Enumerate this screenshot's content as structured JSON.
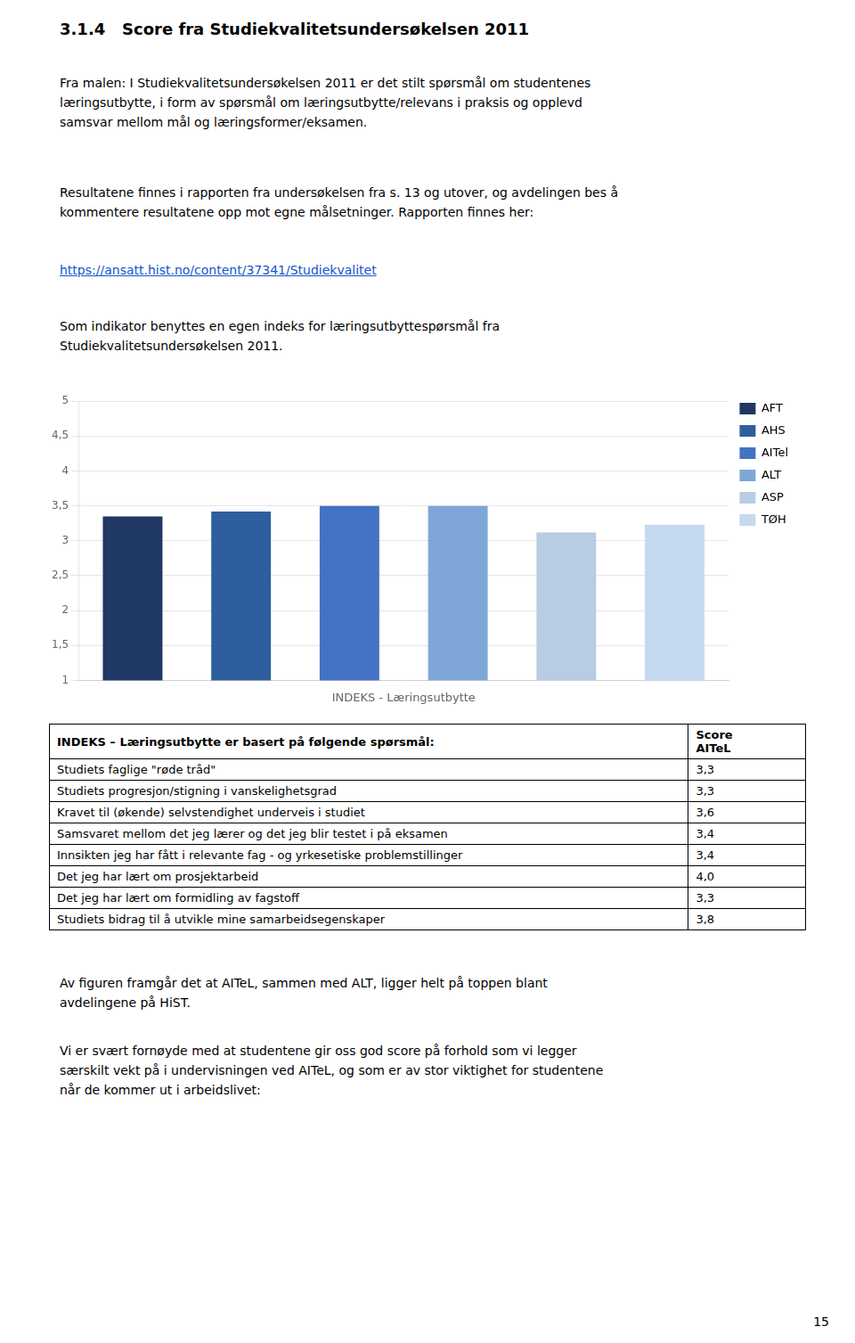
{
  "page": {
    "heading": "3.1.4   Score fra Studiekvalitetsundersøkelsen 2011",
    "paragraphs_before": [
      [
        "Fra malen: I Studiekvalitetsundersøkelsen 2011 er det stilt spørsmål om studentenes",
        "læringsutbytte, i form av spørsmål om læringsutbytte/relevans i praksis og opplevd",
        "samsvar mellom mål og læringsformer/eksamen."
      ],
      [
        "Resultatene finnes i rapporten fra undersøkelsen fra s. 13 og utover, og avdelingen bes å",
        "kommentere resultatene opp mot egne målsetninger. Rapporten finnes her:"
      ]
    ],
    "link": "https://ansatt.hist.no/content/37341/Studiekvalitet",
    "paragraph_before_chart": [
      "Som indikator benyttes en egen indeks for læringsutbyttespørsmål fra",
      "Studiekvalitetsundersøkelsen 2011."
    ],
    "table": {
      "header": [
        "INDEKS – Læringsutbytte er basert på følgende spørsmål:",
        "Score\nAITeL"
      ],
      "rows": [
        [
          "Studiets faglige \"røde tråd\"",
          "3,3"
        ],
        [
          "Studiets progresjon/stigning i vanskelighetsgrad",
          "3,3"
        ],
        [
          "Kravet til (økende) selvstendighet underveis i studiet",
          "3,6"
        ],
        [
          "Samsvaret mellom det jeg lærer og det jeg blir testet i på eksamen",
          "3,4"
        ],
        [
          "Innsikten jeg har fått i relevante fag - og yrkesetiske problemstillinger",
          "3,4"
        ],
        [
          "Det jeg har lært om prosjektarbeid",
          "4,0"
        ],
        [
          "Det jeg har lært om formidling av fagstoff",
          "3,3"
        ],
        [
          "Studiets bidrag til å utvikle mine samarbeidsegenskaper",
          "3,8"
        ]
      ]
    },
    "paragraphs_after": [
      [
        "Av figuren framgår det at AITeL, sammen med ALT, ligger helt på toppen blant",
        "avdelingene på HiST."
      ],
      [
        "Vi er svært fornøyde med at studentene gir oss god score på forhold som vi legger",
        "særskilt vekt på i undervisningen ved AITeL, og som er av stor viktighet for studentene",
        "når de kommer ut i arbeidslivet:"
      ]
    ],
    "page_number": "15"
  },
  "chart_data": {
    "type": "bar",
    "categories": [
      "AFT",
      "AHS",
      "AITel",
      "ALT",
      "ASP",
      "TØH"
    ],
    "values": [
      3.35,
      3.42,
      3.5,
      3.5,
      3.12,
      3.23
    ],
    "colors": [
      "#1F3864",
      "#2E5E9E",
      "#4472C4",
      "#7EA7D8",
      "#B8CCE4",
      "#C5D9F1"
    ],
    "xlabel": "INDEKS - Læringsutbytte",
    "ylim": [
      1,
      5
    ],
    "yticks": [
      1,
      {
        "value": 1.5,
        "label": "1,5"
      },
      2,
      {
        "value": 2.5,
        "label": "2,5"
      },
      3,
      {
        "value": 3.5,
        "label": "3,5"
      },
      4,
      {
        "value": 4.5,
        "label": "4,5"
      },
      5
    ],
    "grid": true,
    "legend": "upper right",
    "tick_labels": "y"
  }
}
